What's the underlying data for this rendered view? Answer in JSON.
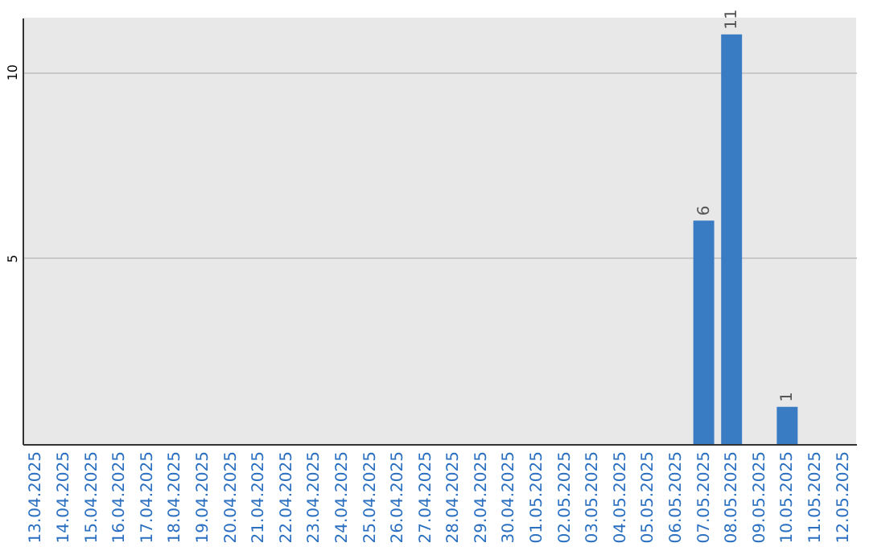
{
  "chart_data": {
    "type": "bar",
    "categories": [
      "13.04.2025",
      "14.04.2025",
      "15.04.2025",
      "16.04.2025",
      "17.04.2025",
      "18.04.2025",
      "19.04.2025",
      "20.04.2025",
      "21.04.2025",
      "22.04.2025",
      "23.04.2025",
      "24.04.2025",
      "25.04.2025",
      "26.04.2025",
      "27.04.2025",
      "28.04.2025",
      "29.04.2025",
      "30.04.2025",
      "01.05.2025",
      "02.05.2025",
      "03.05.2025",
      "04.05.2025",
      "05.05.2025",
      "06.05.2025",
      "07.05.2025",
      "08.05.2025",
      "09.05.2025",
      "10.05.2025",
      "11.05.2025",
      "12.05.2025"
    ],
    "values": [
      0,
      0,
      0,
      0,
      0,
      0,
      0,
      0,
      0,
      0,
      0,
      0,
      0,
      0,
      0,
      0,
      0,
      0,
      0,
      0,
      0,
      0,
      0,
      0,
      6,
      11,
      0,
      1,
      0,
      0
    ],
    "value_labels": [
      null,
      null,
      null,
      null,
      null,
      null,
      null,
      null,
      null,
      null,
      null,
      null,
      null,
      null,
      null,
      null,
      null,
      null,
      null,
      null,
      null,
      null,
      null,
      null,
      "6",
      "11",
      null,
      "1",
      null,
      null
    ],
    "color": "#3a7cc4",
    "ylim": [
      0,
      11.45
    ],
    "yticks": [
      5,
      10
    ],
    "grid": "y"
  }
}
